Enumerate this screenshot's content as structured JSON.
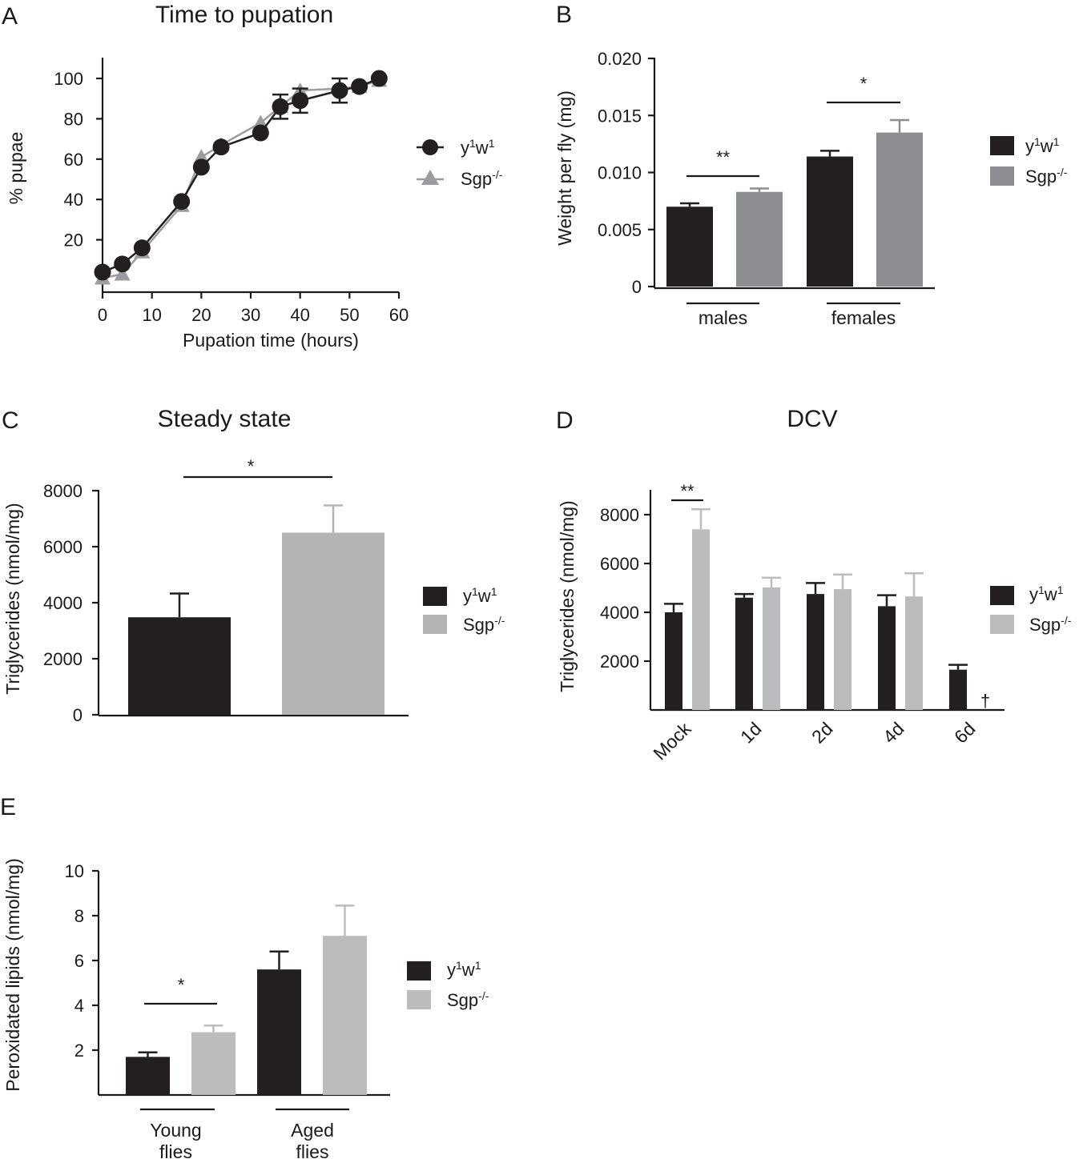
{
  "colors": {
    "black_series": "#231f20",
    "gray_series": "#9b9c9f",
    "dark_gray_series": "#8c8d90",
    "light_gray_series": "#bbbcbe",
    "axis": "#1a1a1a"
  },
  "chart_data": [
    {
      "id": "A",
      "panel_label": "A",
      "type": "line",
      "title": "Time to pupation",
      "xlabel": "Pupation time (hours)",
      "ylabel": "% pupae",
      "xlim": [
        0,
        60
      ],
      "ylim": [
        0,
        100
      ],
      "x_ticks": [
        "0",
        "10",
        "20",
        "30",
        "40",
        "50",
        "60"
      ],
      "y_ticks": [
        "20",
        "40",
        "60",
        "80",
        "100"
      ],
      "series": [
        {
          "name": "Sgp-/-",
          "legend_base": "Sgp",
          "legend_sup": "-/-",
          "marker": "triangle",
          "color": "#9b9c9f",
          "x": [
            0,
            4,
            8,
            16,
            20,
            24,
            32,
            36,
            40,
            48,
            52,
            56
          ],
          "y": [
            1,
            3,
            14,
            37,
            61,
            67,
            78,
            86,
            94,
            95,
            96,
            99
          ]
        },
        {
          "name": "y1w1",
          "legend_base": "y",
          "legend_sup": "1",
          "legend_base2": "w",
          "legend_sup2": "1",
          "marker": "circle",
          "color": "#231f20",
          "x": [
            0,
            4,
            8,
            16,
            20,
            24,
            32,
            36,
            40,
            48,
            52,
            56
          ],
          "y": [
            4,
            8,
            16,
            39,
            56,
            66,
            73,
            86,
            89,
            94,
            96,
            100
          ],
          "err": [
            0,
            0,
            0,
            0,
            0,
            0,
            0,
            6,
            6,
            6,
            0,
            0
          ]
        }
      ]
    },
    {
      "id": "B",
      "panel_label": "B",
      "type": "bar",
      "title": "",
      "ylabel": "Weight per fly (mg)",
      "ylim": [
        0,
        0.02
      ],
      "y_ticks": [
        "0",
        "0.005",
        "0.010",
        "0.015",
        "0.020"
      ],
      "groups": [
        "males",
        "females"
      ],
      "series": [
        {
          "name": "y1w1",
          "color": "#231f20",
          "values": [
            0.007,
            0.0114
          ],
          "err": [
            0.0003,
            0.0005
          ]
        },
        {
          "name": "Sgp-/-",
          "color": "#8c8d90",
          "values": [
            0.0083,
            0.0135
          ],
          "err": [
            0.0003,
            0.0011
          ]
        }
      ],
      "significance": [
        {
          "group": 0,
          "label": "**"
        },
        {
          "group": 1,
          "label": "*"
        }
      ]
    },
    {
      "id": "C",
      "panel_label": "C",
      "type": "bar",
      "title": "Steady state",
      "ylabel": "Triglycerides (nmol/mg)",
      "ylim": [
        0,
        8000
      ],
      "y_ticks": [
        "0",
        "2000",
        "4000",
        "6000",
        "8000"
      ],
      "series": [
        {
          "name": "y1w1",
          "color": "#231f20",
          "values": [
            3480
          ],
          "err": [
            850
          ]
        },
        {
          "name": "Sgp-/-",
          "color": "#b3b4b6",
          "values": [
            6500
          ],
          "err": [
            970
          ]
        }
      ],
      "significance": [
        {
          "label": "*"
        }
      ]
    },
    {
      "id": "D",
      "panel_label": "D",
      "type": "bar",
      "title": "DCV",
      "ylabel": "Triglycerides (nmol/mg)",
      "ylim": [
        0,
        9000
      ],
      "y_ticks": [
        "2000",
        "4000",
        "6000",
        "8000"
      ],
      "categories": [
        "Mock",
        "1d",
        "2d",
        "4d",
        "6d"
      ],
      "series": [
        {
          "name": "y1w1",
          "color": "#231f20",
          "values": [
            4000,
            4600,
            4750,
            4250,
            1650
          ],
          "err": [
            350,
            150,
            450,
            450,
            200
          ]
        },
        {
          "name": "Sgp-/-",
          "color": "#bbbcbe",
          "values": [
            7400,
            5020,
            4950,
            4650,
            null
          ],
          "err": [
            820,
            400,
            600,
            950,
            null
          ]
        }
      ],
      "significance": [
        {
          "category": 0,
          "label": "**"
        }
      ],
      "annotations": [
        {
          "category": 4,
          "label": "†",
          "meaning": "dead"
        }
      ]
    },
    {
      "id": "E",
      "panel_label": "E",
      "type": "bar",
      "title": "",
      "ylabel": "Peroxidated lipids (nmol/mg)",
      "ylim": [
        0,
        10
      ],
      "y_ticks": [
        "2",
        "4",
        "6",
        "8",
        "10"
      ],
      "groups": [
        {
          "line1": "Young",
          "line2": "flies"
        },
        {
          "line1": "Aged",
          "line2": "flies"
        }
      ],
      "series": [
        {
          "name": "y1w1",
          "color": "#231f20",
          "values": [
            1.7,
            5.6
          ],
          "err": [
            0.2,
            0.8
          ]
        },
        {
          "name": "Sgp-/-",
          "color": "#bbbcbe",
          "values": [
            2.8,
            7.1
          ],
          "err": [
            0.3,
            1.35
          ]
        }
      ],
      "significance": [
        {
          "group": 0,
          "label": "*"
        }
      ]
    }
  ]
}
